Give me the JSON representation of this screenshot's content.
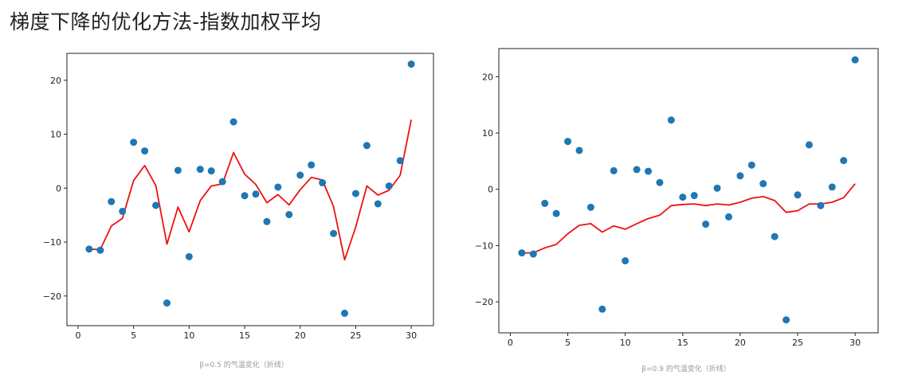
{
  "page": {
    "title": "梯度下降的优化方法-指数加权平均"
  },
  "colors": {
    "scatter": "#1f77b4",
    "line": "#ee1111",
    "axis": "#222222",
    "caption": "#9a9a9a"
  },
  "chart_data": [
    {
      "type": "scatter+line",
      "title": "",
      "caption": "β=0.5 的气温变化（折线）",
      "xlabel": "",
      "ylabel": "",
      "xlim": [
        -1,
        32
      ],
      "ylim": [
        -25.5,
        25
      ],
      "xticks": [
        0,
        5,
        10,
        15,
        20,
        25,
        30
      ],
      "yticks": [
        -20,
        -10,
        0,
        10,
        20
      ],
      "grid": false,
      "series": [
        {
          "name": "temperature",
          "type": "scatter",
          "x": [
            1,
            2,
            3,
            4,
            5,
            6,
            7,
            8,
            9,
            10,
            11,
            12,
            13,
            14,
            15,
            16,
            17,
            18,
            19,
            20,
            21,
            22,
            23,
            24,
            25,
            26,
            27,
            28,
            29,
            30
          ],
          "y": [
            -11.3,
            -11.5,
            -2.5,
            -4.3,
            8.5,
            6.9,
            -3.2,
            -21.3,
            3.3,
            -12.7,
            3.5,
            3.2,
            1.2,
            12.3,
            -1.4,
            -1.1,
            -6.2,
            0.2,
            -4.9,
            2.4,
            4.3,
            1.0,
            -8.4,
            -23.2,
            -1.0,
            7.9,
            -2.9,
            0.4,
            5.1,
            23.0
          ]
        },
        {
          "name": "β=0.5 weighted average",
          "type": "line",
          "x": [
            1,
            2,
            3,
            4,
            5,
            6,
            7,
            8,
            9,
            10,
            11,
            12,
            13,
            14,
            15,
            16,
            17,
            18,
            19,
            20,
            21,
            22,
            23,
            24,
            25,
            26,
            27,
            28,
            29,
            30
          ],
          "y": [
            -11.3,
            -11.4,
            -7.0,
            -5.6,
            1.4,
            4.2,
            0.5,
            -10.4,
            -3.5,
            -8.1,
            -2.3,
            0.4,
            0.8,
            6.6,
            2.6,
            0.7,
            -2.7,
            -1.2,
            -3.1,
            -0.3,
            2.0,
            1.5,
            -3.4,
            -13.3,
            -7.2,
            0.4,
            -1.3,
            -0.4,
            2.4,
            12.7
          ]
        }
      ]
    },
    {
      "type": "scatter+line",
      "title": "",
      "caption": "β=0.9 的气温变化（折线）",
      "xlabel": "",
      "ylabel": "",
      "xlim": [
        -1,
        32
      ],
      "ylim": [
        -25.5,
        25
      ],
      "xticks": [
        0,
        5,
        10,
        15,
        20,
        25,
        30
      ],
      "yticks": [
        -20,
        -10,
        0,
        10,
        20
      ],
      "grid": false,
      "series": [
        {
          "name": "temperature",
          "type": "scatter",
          "x": [
            1,
            2,
            3,
            4,
            5,
            6,
            7,
            8,
            9,
            10,
            11,
            12,
            13,
            14,
            15,
            16,
            17,
            18,
            19,
            20,
            21,
            22,
            23,
            24,
            25,
            26,
            27,
            28,
            29,
            30
          ],
          "y": [
            -11.3,
            -11.5,
            -2.5,
            -4.3,
            8.5,
            6.9,
            -3.2,
            -21.3,
            3.3,
            -12.7,
            3.5,
            3.2,
            1.2,
            12.3,
            -1.4,
            -1.1,
            -6.2,
            0.2,
            -4.9,
            2.4,
            4.3,
            1.0,
            -8.4,
            -23.2,
            -1.0,
            7.9,
            -2.9,
            0.4,
            5.1,
            23.0
          ]
        },
        {
          "name": "β=0.9 weighted average",
          "type": "line",
          "x": [
            1,
            2,
            3,
            4,
            5,
            6,
            7,
            8,
            9,
            10,
            11,
            12,
            13,
            14,
            15,
            16,
            17,
            18,
            19,
            20,
            21,
            22,
            23,
            24,
            25,
            26,
            27,
            28,
            29,
            30
          ],
          "y": [
            -11.3,
            -11.3,
            -10.4,
            -9.8,
            -7.9,
            -6.4,
            -6.1,
            -7.6,
            -6.5,
            -7.1,
            -6.1,
            -5.2,
            -4.6,
            -2.9,
            -2.7,
            -2.6,
            -2.9,
            -2.6,
            -2.8,
            -2.3,
            -1.6,
            -1.3,
            -2.0,
            -4.1,
            -3.8,
            -2.6,
            -2.6,
            -2.3,
            -1.5,
            1.0
          ]
        }
      ]
    }
  ]
}
